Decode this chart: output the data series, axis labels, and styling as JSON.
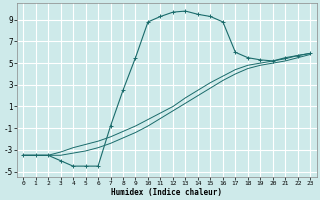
{
  "xlabel": "Humidex (Indice chaleur)",
  "bg_color": "#ceeaea",
  "grid_color": "#ffffff",
  "line_color": "#1a6b6b",
  "xlim": [
    -0.5,
    23.5
  ],
  "ylim": [
    -5.5,
    10.5
  ],
  "xticks": [
    0,
    1,
    2,
    3,
    4,
    5,
    6,
    7,
    8,
    9,
    10,
    11,
    12,
    13,
    14,
    15,
    16,
    17,
    18,
    19,
    20,
    21,
    22,
    23
  ],
  "yticks": [
    -5,
    -3,
    -1,
    1,
    3,
    5,
    7,
    9
  ],
  "curve1_x": [
    0,
    1,
    2,
    3,
    4,
    5,
    6,
    7,
    8,
    9,
    10,
    11,
    12,
    13,
    14,
    15,
    16,
    17,
    18,
    19,
    20,
    21,
    22,
    23
  ],
  "curve1_y": [
    -3.5,
    -3.5,
    -3.5,
    -4.0,
    -4.5,
    -4.5,
    -4.5,
    -0.8,
    2.5,
    5.5,
    8.8,
    9.3,
    9.7,
    9.8,
    9.5,
    9.3,
    8.8,
    6.0,
    5.5,
    5.3,
    5.2,
    5.5,
    5.7,
    5.9
  ],
  "curve2_x": [
    0,
    2,
    3,
    4,
    5,
    6,
    7,
    8,
    9,
    10,
    11,
    12,
    13,
    14,
    15,
    16,
    17,
    18,
    19,
    20,
    21,
    22,
    23
  ],
  "curve2_y": [
    -3.5,
    -3.5,
    -3.2,
    -2.8,
    -2.5,
    -2.2,
    -1.8,
    -1.3,
    -0.8,
    -0.2,
    0.4,
    1.0,
    1.8,
    2.5,
    3.2,
    3.8,
    4.4,
    4.8,
    5.0,
    5.2,
    5.4,
    5.7,
    5.9
  ],
  "curve3_x": [
    0,
    2,
    3,
    4,
    5,
    6,
    7,
    8,
    9,
    10,
    11,
    12,
    13,
    14,
    15,
    16,
    17,
    18,
    19,
    20,
    21,
    22,
    23
  ],
  "curve3_y": [
    -3.5,
    -3.5,
    -3.5,
    -3.3,
    -3.1,
    -2.8,
    -2.4,
    -1.9,
    -1.4,
    -0.8,
    -0.1,
    0.6,
    1.3,
    2.0,
    2.7,
    3.4,
    4.0,
    4.5,
    4.8,
    5.0,
    5.2,
    5.5,
    5.8
  ]
}
